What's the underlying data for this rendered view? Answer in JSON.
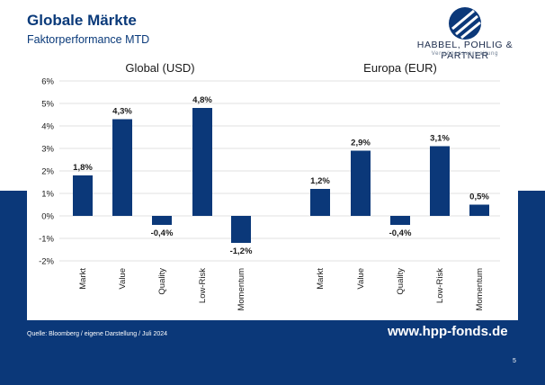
{
  "header": {
    "title": "Globale Märkte",
    "subtitle": "Faktorperformance MTD"
  },
  "logo": {
    "name": "HABBEL, POHLIG & PARTNER",
    "tagline": "Vermögensverwaltung"
  },
  "footer": {
    "source": "Quelle: Bloomberg / eigene Darstellung /   Juli 2024",
    "url": "www.hpp-fonds.de",
    "page_number": "5"
  },
  "colors": {
    "brand_navy": "#0b3879",
    "bar": "#0b3879",
    "grid": "#d9d9d9",
    "text": "#1a1a1a"
  },
  "chart_data": {
    "type": "bar",
    "ylim": [
      -2,
      6
    ],
    "yticks": [
      "-2%",
      "-1%",
      "0%",
      "1%",
      "2%",
      "3%",
      "4%",
      "5%",
      "6%"
    ],
    "grid": true,
    "groups": [
      {
        "title": "Global (USD)",
        "categories": [
          "Markt",
          "Value",
          "Quality",
          "Low-Risk",
          "Momentum"
        ],
        "values": [
          1.8,
          4.3,
          -0.4,
          4.8,
          -1.2
        ],
        "labels": [
          "1,8%",
          "4,3%",
          "-0,4%",
          "4,8%",
          "-1,2%"
        ]
      },
      {
        "title": "Europa (EUR)",
        "categories": [
          "Markt",
          "Value",
          "Quality",
          "Low-Risk",
          "Momentum"
        ],
        "values": [
          1.2,
          2.9,
          -0.4,
          3.1,
          0.5
        ],
        "labels": [
          "1,2%",
          "2,9%",
          "-0,4%",
          "3,1%",
          "0,5%"
        ]
      }
    ]
  }
}
